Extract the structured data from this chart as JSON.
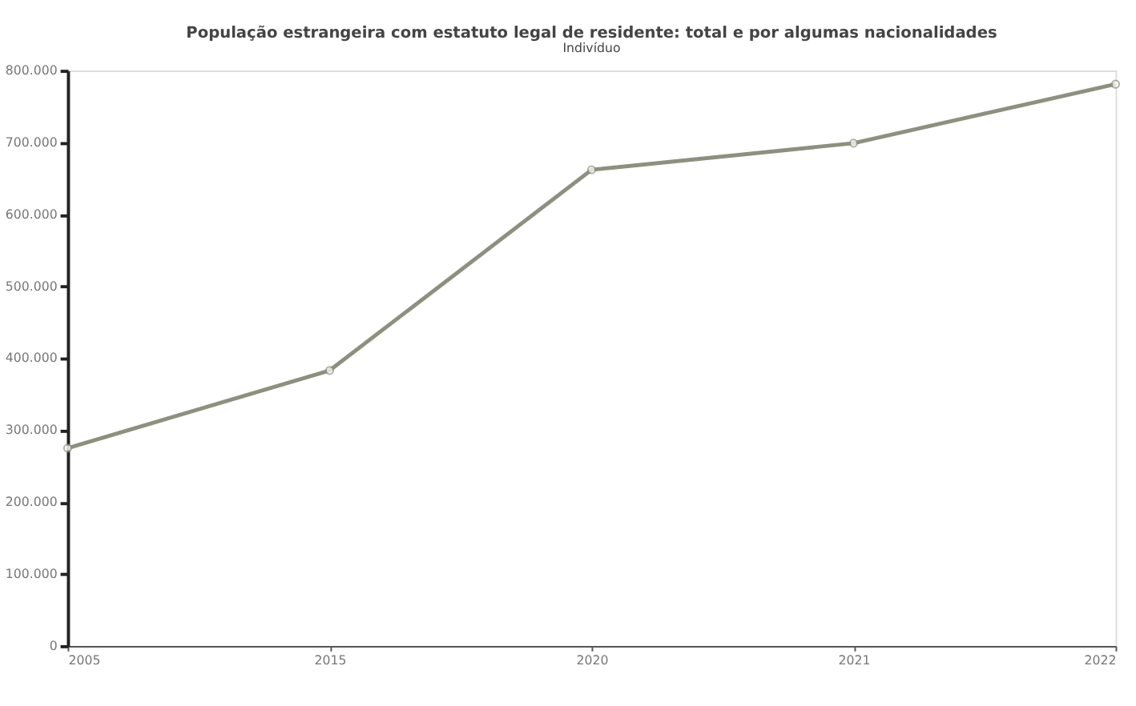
{
  "chart_data": {
    "type": "line",
    "title": "População estrangeira com estatuto legal de residente: total e por algumas nacionalidades",
    "subtitle": "Indivíduo",
    "categories": [
      "2005",
      "2015",
      "2020",
      "2021",
      "2022"
    ],
    "series": [
      {
        "color": "#8f8f80",
        "values": [
          275000,
          383000,
          662000,
          699000,
          781000
        ]
      }
    ],
    "ylim": [
      0,
      800000
    ],
    "yticks": [
      0,
      {
        "value": 100000,
        "label": "100.000"
      },
      {
        "value": 200000,
        "label": "200.000"
      },
      {
        "value": 300000,
        "label": "300.000"
      },
      {
        "value": 400000,
        "label": "400.000"
      },
      {
        "value": 500000,
        "label": "500.000"
      },
      {
        "value": 600000,
        "label": "600.000"
      },
      {
        "value": 700000,
        "label": "700.000"
      },
      {
        "value": 800000,
        "label": "800.000"
      }
    ],
    "marker": "circle",
    "grid": false,
    "legend": false
  }
}
